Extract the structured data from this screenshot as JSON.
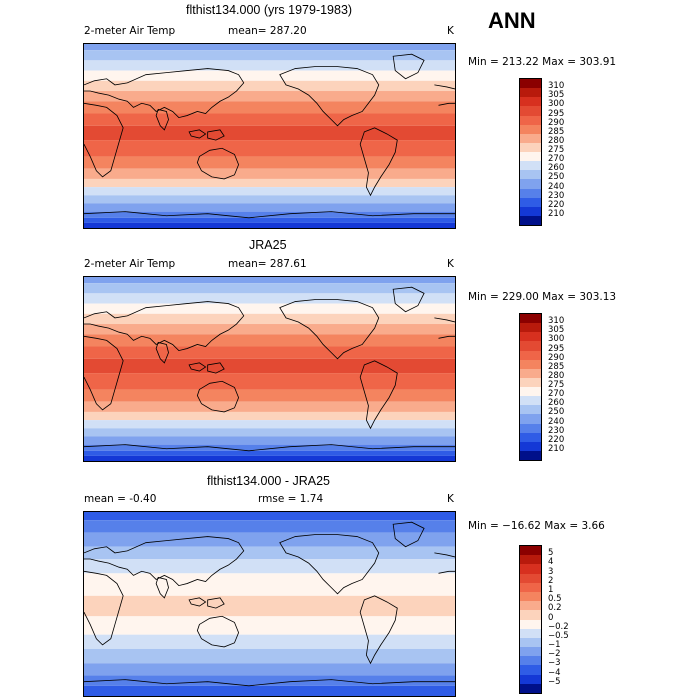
{
  "season": "ANN",
  "panels": [
    {
      "title": "flthist134.000 (yrs 1979-1983)",
      "left_label": "2-meter Air Temp",
      "mid_label": "mean=  287.20",
      "unit": "K",
      "minmax": "Min = 213.22 Max = 303.91",
      "type": "abs"
    },
    {
      "title": "JRA25",
      "left_label": "2-meter Air Temp",
      "mid_label": "mean=  287.61",
      "unit": "K",
      "minmax": "Min = 229.00 Max = 303.13",
      "type": "abs"
    },
    {
      "title": "flthist134.000 - JRA25",
      "left_label": "mean =   -0.40",
      "mid_label": "rmse =    1.74",
      "unit": "K",
      "minmax": "Min = −16.62 Max =    3.66",
      "type": "diff"
    }
  ],
  "colorbars": {
    "abs": {
      "labels": [
        "310",
        "305",
        "300",
        "295",
        "290",
        "285",
        "280",
        "275",
        "270",
        "260",
        "250",
        "240",
        "230",
        "220",
        "210"
      ],
      "colors": [
        "#8b0000",
        "#b81a0c",
        "#d7301f",
        "#e34a33",
        "#ef6548",
        "#f4845f",
        "#f9ab8c",
        "#fcd3bc",
        "#fff5ee",
        "#d1e0f6",
        "#a8c4f2",
        "#7fa2ee",
        "#5680ea",
        "#2f5ce6",
        "#1438d6",
        "#00108a"
      ]
    },
    "diff": {
      "labels": [
        "5",
        "4",
        "3",
        "2",
        "1",
        "0.5",
        "0.2",
        "0",
        "−0.2",
        "−0.5",
        "−1",
        "−2",
        "−3",
        "−4",
        "−5"
      ],
      "colors": [
        "#8b0000",
        "#b81a0c",
        "#d7301f",
        "#e34a33",
        "#ef6548",
        "#f4845f",
        "#f9ab8c",
        "#fcd3bc",
        "#fff5ee",
        "#d1e0f6",
        "#a8c4f2",
        "#7fa2ee",
        "#5680ea",
        "#2f5ce6",
        "#1438d6",
        "#00108a"
      ]
    }
  }
}
